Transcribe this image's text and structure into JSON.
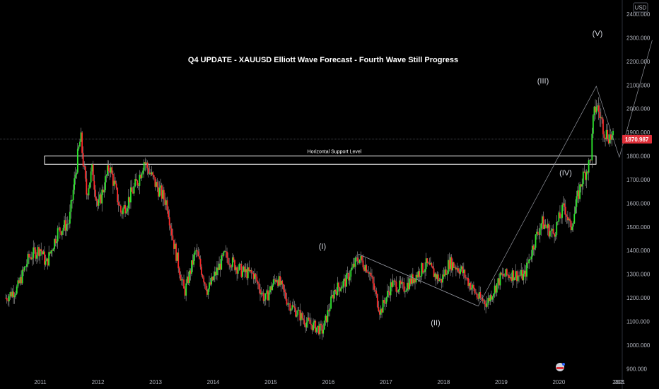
{
  "chart_data": {
    "type": "candlestick",
    "title": "Q4 UPDATE - XAUUSD Elliott Wave Forecast - Fourth Wave Still Progress",
    "currency": "USD",
    "current_price": "1870.987",
    "ylim": [
      880,
      2460
    ],
    "xlim": [
      2010.3,
      2021.1
    ],
    "y_ticks": [
      "900.000",
      "1000.000",
      "1100.000",
      "1200.000",
      "1300.000",
      "1400.000",
      "1500.000",
      "1600.000",
      "1700.000",
      "1800.000",
      "1900.000",
      "2000.000",
      "2100.000",
      "2200.000",
      "2300.000",
      "2400.000"
    ],
    "x_ticks": [
      "2011",
      "2012",
      "2013",
      "2014",
      "2015",
      "2016",
      "2017",
      "2018",
      "2019",
      "2020",
      "2021",
      "202"
    ],
    "price_path": [
      [
        2010.4,
        1200
      ],
      [
        2010.6,
        1240
      ],
      [
        2010.8,
        1370
      ],
      [
        2011.0,
        1410
      ],
      [
        2011.1,
        1340
      ],
      [
        2011.3,
        1480
      ],
      [
        2011.5,
        1520
      ],
      [
        2011.65,
        1800
      ],
      [
        2011.7,
        1880
      ],
      [
        2011.8,
        1640
      ],
      [
        2011.9,
        1740
      ],
      [
        2012.0,
        1580
      ],
      [
        2012.2,
        1760
      ],
      [
        2012.4,
        1560
      ],
      [
        2012.5,
        1600
      ],
      [
        2012.7,
        1700
      ],
      [
        2012.8,
        1780
      ],
      [
        2013.0,
        1680
      ],
      [
        2013.2,
        1600
      ],
      [
        2013.3,
        1450
      ],
      [
        2013.5,
        1220
      ],
      [
        2013.7,
        1400
      ],
      [
        2013.9,
        1230
      ],
      [
        2014.2,
        1380
      ],
      [
        2014.5,
        1310
      ],
      [
        2014.7,
        1300
      ],
      [
        2014.9,
        1190
      ],
      [
        2015.1,
        1290
      ],
      [
        2015.3,
        1180
      ],
      [
        2015.6,
        1100
      ],
      [
        2015.9,
        1060
      ],
      [
        2016.1,
        1230
      ],
      [
        2016.3,
        1270
      ],
      [
        2016.52,
        1370
      ],
      [
        2016.7,
        1320
      ],
      [
        2016.9,
        1140
      ],
      [
        2017.1,
        1260
      ],
      [
        2017.3,
        1240
      ],
      [
        2017.5,
        1290
      ],
      [
        2017.7,
        1340
      ],
      [
        2017.95,
        1270
      ],
      [
        2018.1,
        1350
      ],
      [
        2018.3,
        1320
      ],
      [
        2018.6,
        1200
      ],
      [
        2018.75,
        1180
      ],
      [
        2019.0,
        1290
      ],
      [
        2019.2,
        1300
      ],
      [
        2019.4,
        1290
      ],
      [
        2019.55,
        1420
      ],
      [
        2019.7,
        1520
      ],
      [
        2019.9,
        1470
      ],
      [
        2020.1,
        1590
      ],
      [
        2020.2,
        1490
      ],
      [
        2020.4,
        1700
      ],
      [
        2020.55,
        1780
      ],
      [
        2020.6,
        1960
      ],
      [
        2020.65,
        2020
      ],
      [
        2020.8,
        1900
      ],
      [
        2020.95,
        1870
      ]
    ],
    "wave_labels": [
      "(I)",
      "(II)",
      "(III)",
      "(IV)",
      "(V)"
    ],
    "waves": [
      {
        "label": "(I)",
        "x": 2016.52,
        "y": 1375
      },
      {
        "label": "(II)",
        "x": 2018.6,
        "y": 1160
      },
      {
        "label": "(III)",
        "x": 2020.65,
        "y": 2100
      },
      {
        "label": "(IV)",
        "x": 2021.0,
        "y": 1790
      },
      {
        "label": "(V)",
        "x": 2021.6,
        "y": 2300
      }
    ],
    "support_level": {
      "label": "Horizontal Support Level",
      "low": 1765,
      "high": 1800,
      "x_start": 2010.95,
      "x_end": 2021.6
    }
  }
}
